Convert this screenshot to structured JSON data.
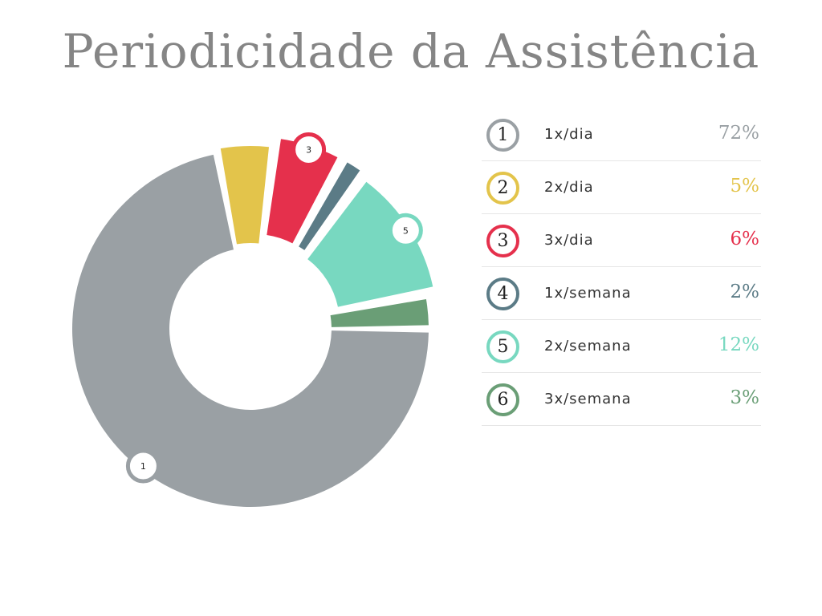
{
  "chart_data": {
    "type": "pie",
    "title": "Periodicidade da Assistência",
    "slices": [
      {
        "id": "1",
        "label": "1x/dia",
        "percent_label": "72%",
        "value": 72,
        "color": "#9aa0a4"
      },
      {
        "id": "2",
        "label": "2x/dia",
        "percent_label": "5%",
        "value": 5,
        "color": "#e3c44b"
      },
      {
        "id": "3",
        "label": "3x/dia",
        "percent_label": "6%",
        "value": 6,
        "color": "#e5304c"
      },
      {
        "id": "4",
        "label": "1x/semana",
        "percent_label": "2%",
        "value": 2,
        "color": "#5b7b86"
      },
      {
        "id": "5",
        "label": "2x/semana",
        "percent_label": "12%",
        "value": 12,
        "color": "#78d8c0"
      },
      {
        "id": "6",
        "label": "3x/semana",
        "percent_label": "3%",
        "value": 3,
        "color": "#6a9e76"
      }
    ],
    "callouts_shown": [
      "1",
      "3",
      "5"
    ]
  }
}
